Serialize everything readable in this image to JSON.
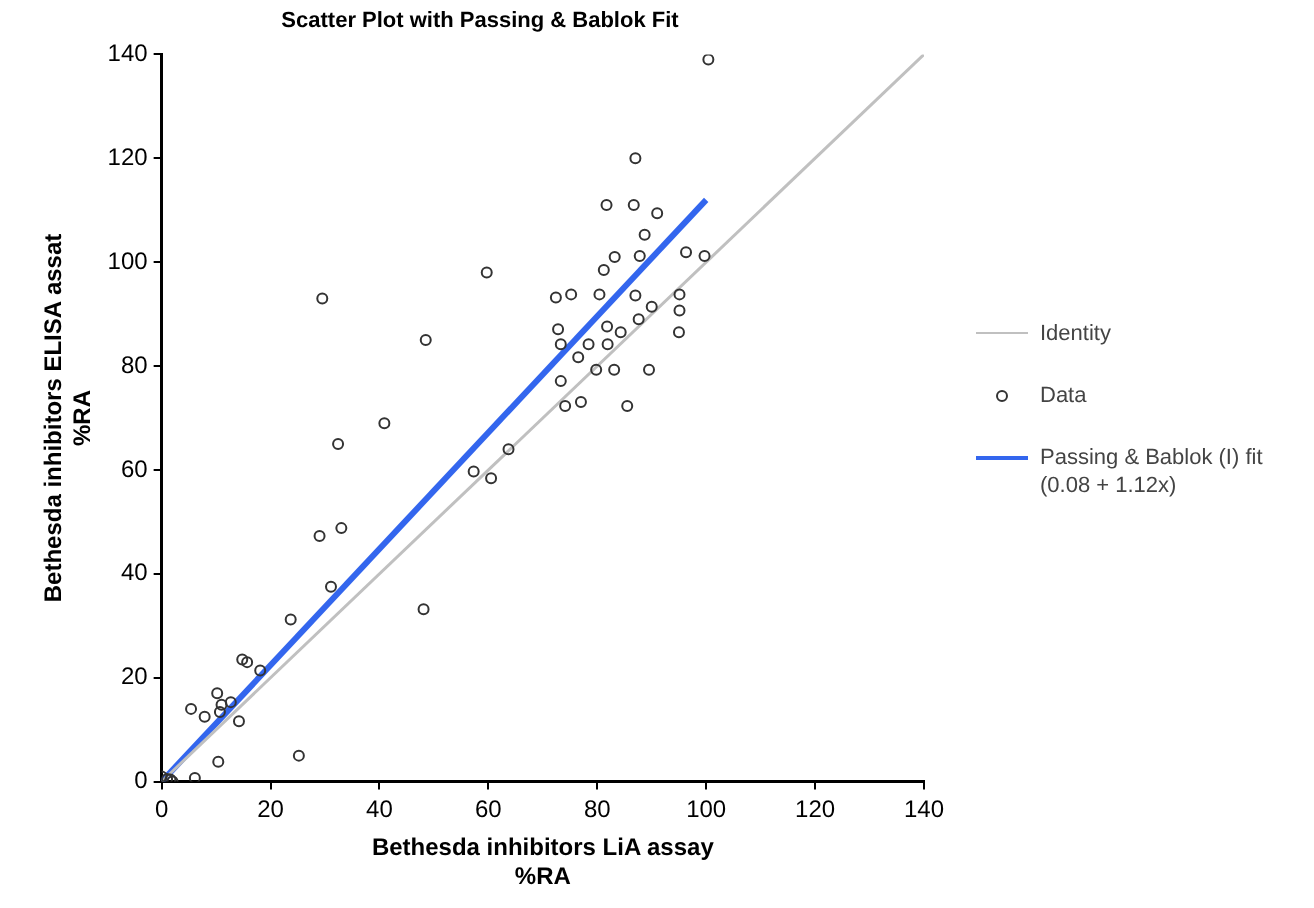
{
  "chart_data": {
    "type": "scatter",
    "title": "Scatter Plot with Passing & Bablok Fit",
    "xlabel": "Bethesda inhibitors LiA assay\n%RA",
    "ylabel": "Bethesda inhibitors ELISA assat\n%RA",
    "xlim": [
      0,
      140
    ],
    "ylim": [
      0,
      140
    ],
    "xticks": [
      0,
      20,
      40,
      60,
      80,
      100,
      120,
      140
    ],
    "yticks": [
      0,
      20,
      40,
      60,
      80,
      100,
      120,
      140
    ],
    "grid": false,
    "legend": "right",
    "series": [
      {
        "name": "Identity",
        "type": "line",
        "marker": "none",
        "color": "#c0c0c0",
        "x": [
          0,
          140
        ],
        "values": [
          0,
          140
        ]
      },
      {
        "name": "Data",
        "type": "scatter",
        "marker": "circle",
        "color": "#333333",
        "x": [
          0,
          1,
          2,
          1.6,
          6.1,
          10.4,
          25.2,
          14.2,
          10.7,
          12.7,
          11,
          7.9,
          5.4,
          10.2,
          18.1,
          15.7,
          14.8,
          23.7,
          48.1,
          31.1,
          29,
          33,
          57.3,
          60.5,
          32.4,
          63.7,
          40.9,
          48.5,
          29.5,
          59.7,
          72.4,
          75.2,
          80.4,
          87,
          95.1,
          95.1,
          95,
          72.8,
          73.3,
          78.4,
          81.9,
          81.8,
          84.3,
          87.6,
          90,
          76.5,
          79.8,
          83.1,
          89.5,
          73.3,
          74.1,
          77,
          85.5,
          81.2,
          83.2,
          87.8,
          96.3,
          99.7,
          88.7,
          91,
          81.7,
          86.7,
          87,
          100.4
        ],
        "values": [
          1,
          0.5,
          0,
          0.4,
          0.7,
          3.8,
          5,
          11.6,
          13.4,
          15.3,
          14.8,
          12.5,
          14,
          17,
          21.4,
          23,
          23.5,
          31.2,
          33.2,
          37.5,
          47.3,
          48.8,
          59.7,
          58.4,
          65,
          64,
          69,
          85,
          93,
          98,
          93.2,
          93.8,
          93.8,
          93.6,
          93.8,
          90.7,
          86.5,
          87.1,
          84.2,
          84.2,
          84.2,
          87.6,
          86.5,
          89,
          91.4,
          81.7,
          79.3,
          79.3,
          79.3,
          77.1,
          72.3,
          73.1,
          72.3,
          98.5,
          101,
          101.2,
          101.9,
          101.2,
          105.3,
          109.4,
          111,
          111,
          120,
          139
        ]
      },
      {
        "name": "Passing & Bablok (I) fit\n(0.08 + 1.12x)",
        "type": "line",
        "marker": "none",
        "color": "#3366ee",
        "x": [
          0,
          100
        ],
        "values": [
          0,
          112
        ]
      }
    ]
  }
}
